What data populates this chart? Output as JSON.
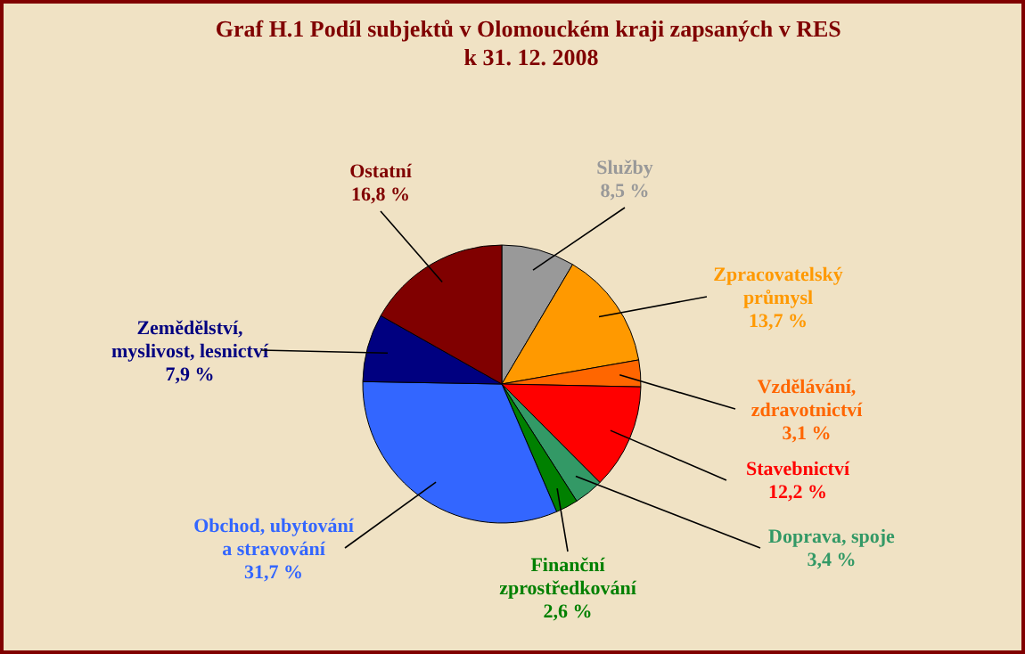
{
  "chart_data": {
    "type": "pie",
    "title": "Graf H.1  Podíl subjektů v Olomouckém kraji zapsaných v RES\nk 31. 12. 2008",
    "categories": [
      "Služby",
      "Zpracovatelský\nprůmysl",
      "Vzdělávání,\nzdravotnictví",
      "Stavebnictví",
      "Doprava, spoje",
      "Finanční\nzprostředkování",
      "Obchod, ubytování\na stravování",
      "Zemědělství,\nmyslivost, lesnictví",
      "Ostatní"
    ],
    "values": [
      8.5,
      13.7,
      3.1,
      12.2,
      3.4,
      2.6,
      31.7,
      7.9,
      16.8
    ],
    "colors": [
      "#999999",
      "#ff9900",
      "#ff6600",
      "#ff0000",
      "#339966",
      "#008000",
      "#3366ff",
      "#000080",
      "#800000"
    ],
    "value_labels": [
      "8,5 %",
      "13,7 %",
      "3,1 %",
      "12,2 %",
      "3,4 %",
      "2,6 %",
      "31,7 %",
      "7,9 %",
      "16,8 %"
    ]
  }
}
